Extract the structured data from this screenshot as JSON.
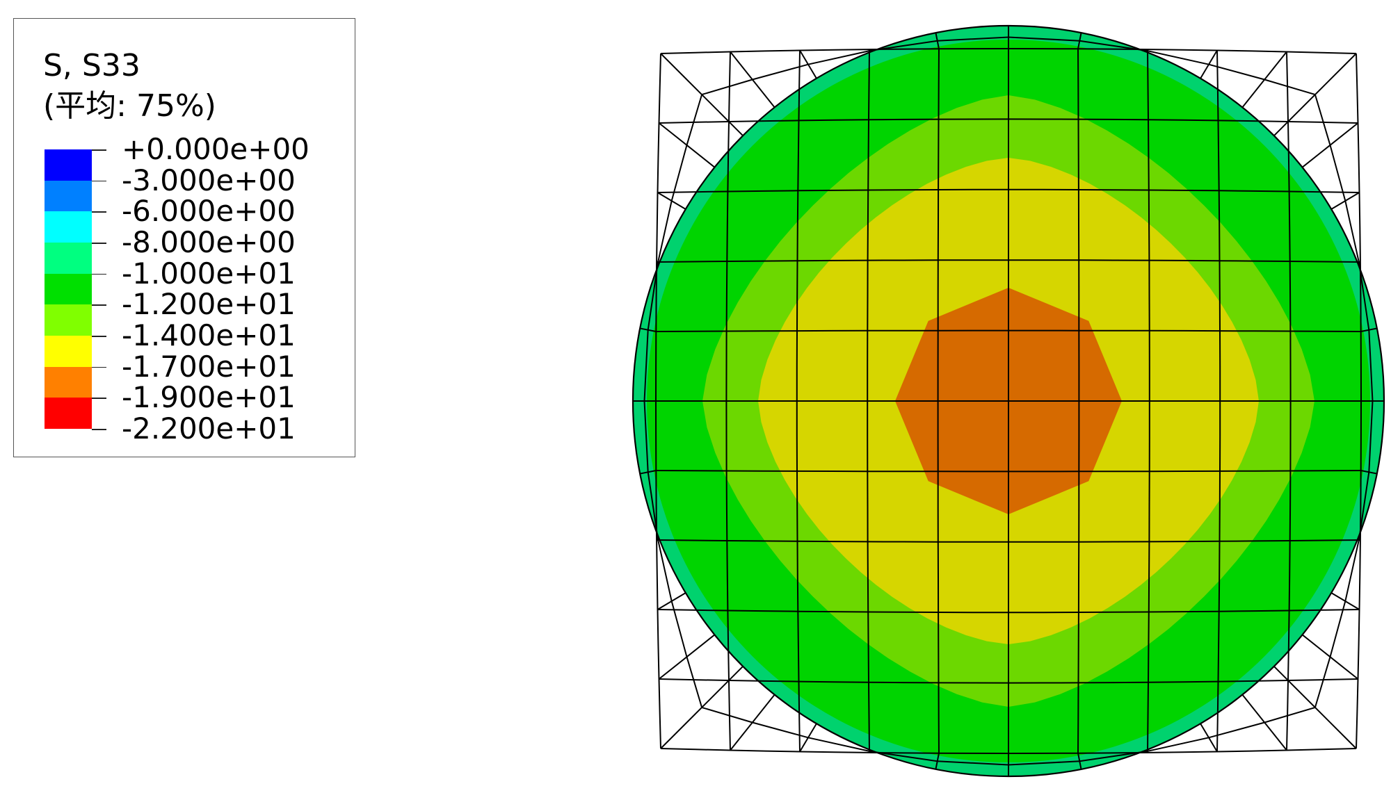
{
  "legend": {
    "title": "S, S33",
    "subtitle": "(平均: 75%)",
    "labels": [
      "+0.000e+00",
      "-3.000e+00",
      "-6.000e+00",
      "-8.000e+00",
      "-1.000e+01",
      "-1.200e+01",
      "-1.400e+01",
      "-1.700e+01",
      "-1.900e+01",
      "-2.200e+01"
    ],
    "colors": [
      "#0000ff",
      "#0080ff",
      "#00ffff",
      "#00ff80",
      "#00e000",
      "#80ff00",
      "#ffff00",
      "#ff8000",
      "#ff0000"
    ]
  },
  "contour": {
    "bands": [
      "#00d26e",
      "#00d400",
      "#6cd800",
      "#d6d600",
      "#d66a00"
    ],
    "mesh_color": "#000000"
  }
}
